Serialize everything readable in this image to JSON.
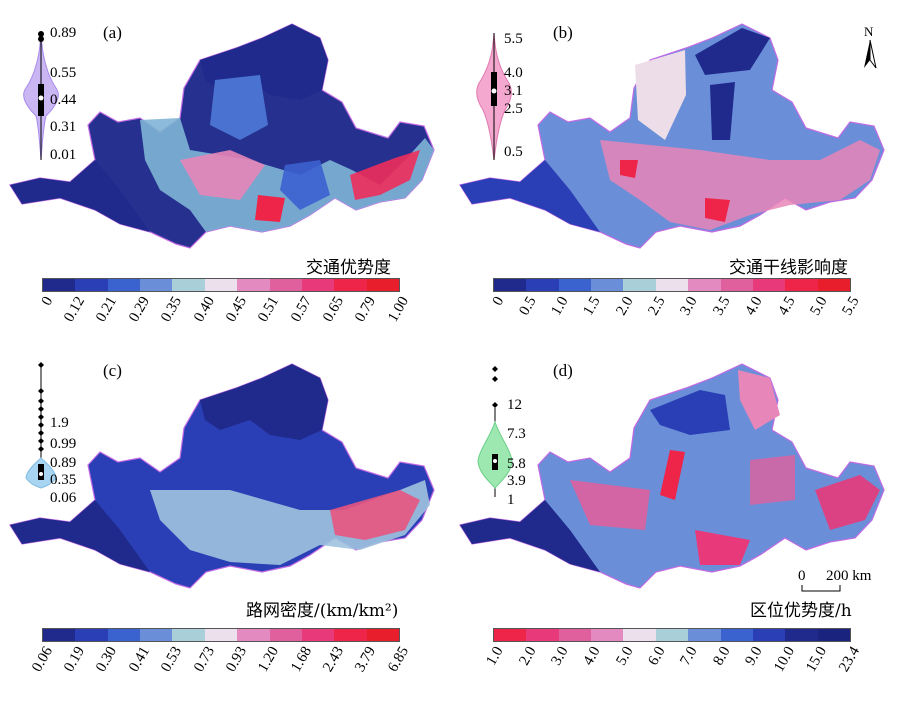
{
  "panels": [
    {
      "id": "a",
      "label": "(a)",
      "legend_title": "交通优势度",
      "violin_color": "#c9b6f3",
      "violin_values": [
        "0.89",
        "0.55",
        "0.44",
        "0.31",
        "0.01"
      ],
      "legend_ticks": [
        "0",
        "0.12",
        "0.21",
        "0.29",
        "0.35",
        "0.40",
        "0.45",
        "0.51",
        "0.57",
        "0.65",
        "0.79",
        "1.00"
      ],
      "legend_colors": [
        "#1f2a8c",
        "#2a3fb5",
        "#3b63cf",
        "#6a8fd8",
        "#a9cfd9",
        "#ece0ec",
        "#e38ac0",
        "#e0609e",
        "#e83a7a",
        "#ee2448",
        "#e81e2c"
      ]
    },
    {
      "id": "b",
      "label": "(b)",
      "legend_title": "交通干线影响度",
      "violin_color": "#f4a8cf",
      "violin_values": [
        "5.5",
        "4.0",
        "3.1",
        "2.5",
        "0.5"
      ],
      "legend_ticks": [
        "0",
        "0.5",
        "1.0",
        "1.5",
        "2.0",
        "2.5",
        "3.0",
        "3.5",
        "4.0",
        "4.5",
        "5.0",
        "5.5"
      ],
      "legend_colors": [
        "#1f2a8c",
        "#2a3fb5",
        "#3b63cf",
        "#6a8fd8",
        "#a9cfd9",
        "#ece0ec",
        "#e38ac0",
        "#e0609e",
        "#e83a7a",
        "#ee2448",
        "#e81e2c"
      ],
      "north_label": "N"
    },
    {
      "id": "c",
      "label": "(c)",
      "legend_title": "路网密度/(km/km²)",
      "violin_color": "#a8d6f2",
      "violin_values": [
        "1.9",
        "0.99",
        "0.89",
        "0.35",
        "0.06"
      ],
      "legend_ticks": [
        "0.06",
        "0.19",
        "0.30",
        "0.41",
        "0.53",
        "0.73",
        "0.93",
        "1.20",
        "1.68",
        "2.43",
        "3.79",
        "6.85"
      ],
      "legend_colors": [
        "#1f2a8c",
        "#2a3fb5",
        "#3b63cf",
        "#6a8fd8",
        "#a9cfd9",
        "#ece0ec",
        "#e38ac0",
        "#e0609e",
        "#e83a7a",
        "#ee2448",
        "#e81e2c"
      ]
    },
    {
      "id": "d",
      "label": "(d)",
      "legend_title": "区位优势度/h",
      "violin_color": "#9ce8b0",
      "violin_values": [
        "12",
        "7.3",
        "5.8",
        "3.9",
        "1"
      ],
      "legend_ticks": [
        "1.0",
        "2.0",
        "3.0",
        "4.0",
        "5.0",
        "6.0",
        "7.0",
        "8.0",
        "9.0",
        "10.0",
        "15.0",
        "23.4"
      ],
      "legend_colors": [
        "#ee2448",
        "#e83a7a",
        "#e0609e",
        "#e38ac0",
        "#ece0ec",
        "#a9cfd9",
        "#6a8fd8",
        "#3b63cf",
        "#2a3fb5",
        "#1f2a8c",
        "#1a237e"
      ],
      "scale_zero": "0",
      "scale_label": "200 km"
    }
  ]
}
